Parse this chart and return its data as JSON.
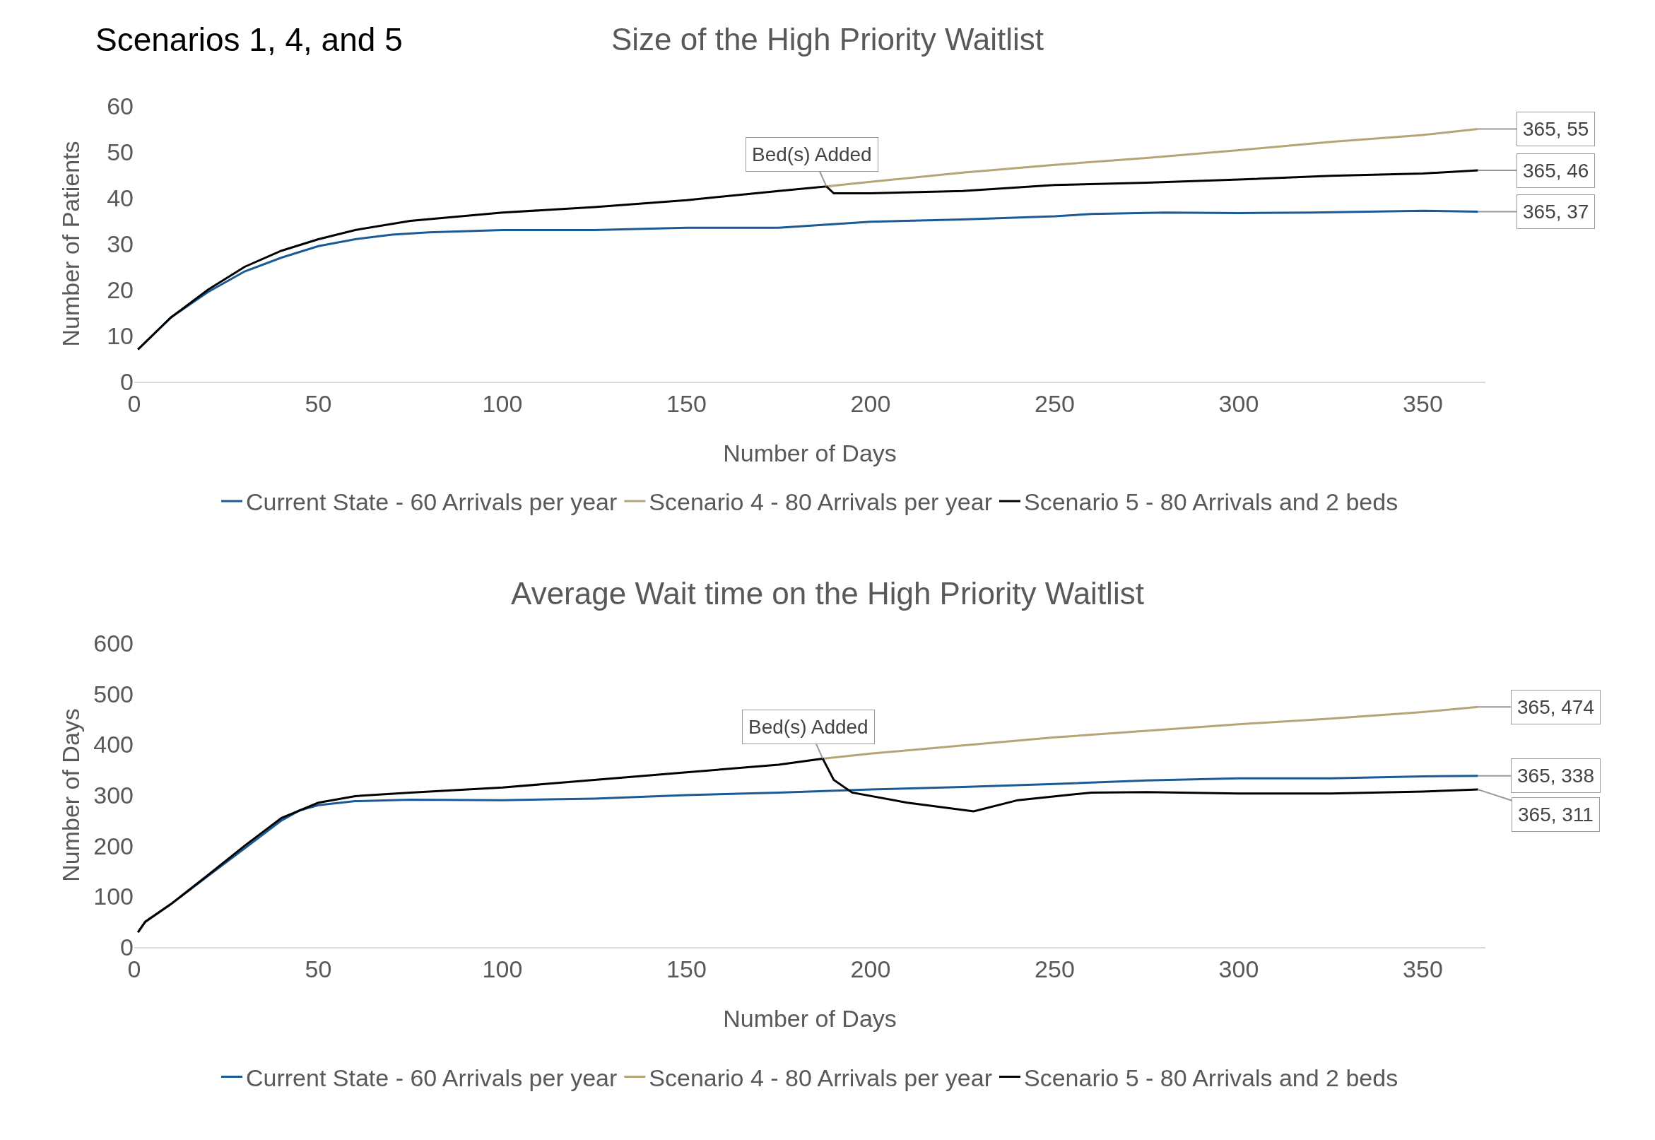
{
  "chart_data": [
    {
      "type": "line",
      "title": "Size of the High Priority Waitlist",
      "xlabel": "Number of Days",
      "ylabel": "Number of Patients",
      "xlim": [
        0,
        367
      ],
      "xticks": [
        0,
        50,
        100,
        150,
        200,
        250,
        300,
        350
      ],
      "ylim": [
        0,
        60
      ],
      "yticks": [
        0,
        10,
        20,
        30,
        40,
        50,
        60
      ],
      "grid": false,
      "legend": "bottom",
      "marker": "none",
      "annotations": [
        "Scenarios 1, 4, and 5",
        {
          "text": "Bed(s) Added",
          "x": 188,
          "y": 42.5
        },
        {
          "text": "365, 55",
          "x": 365,
          "y": 55
        },
        {
          "text": "365, 46",
          "x": 365,
          "y": 46
        },
        {
          "text": "365, 37",
          "x": 365,
          "y": 37
        }
      ],
      "series": [
        {
          "name": "Current State - 60 Arrivals per year",
          "color": "#1a5a96",
          "x": [
            1,
            10,
            20,
            30,
            40,
            50,
            60,
            70,
            80,
            100,
            125,
            150,
            175,
            200,
            225,
            250,
            260,
            280,
            300,
            320,
            350,
            365
          ],
          "values": [
            7,
            14,
            19.5,
            24,
            27,
            29.5,
            31,
            32,
            32.5,
            33,
            33,
            33.5,
            33.5,
            34.8,
            35.3,
            36,
            36.5,
            36.8,
            36.7,
            36.8,
            37.2,
            37
          ]
        },
        {
          "name": "Scenario 4 - 80 Arrivals per year",
          "color": "#b5a576",
          "x": [
            188,
            200,
            225,
            250,
            275,
            300,
            325,
            350,
            365
          ],
          "values": [
            42.5,
            43.5,
            45.5,
            47.2,
            48.7,
            50.4,
            52.2,
            53.7,
            55
          ]
        },
        {
          "name": "Scenario 5 - 80 Arrivals and 2 beds",
          "color": "#000000",
          "x": [
            1,
            10,
            20,
            30,
            40,
            50,
            60,
            75,
            100,
            125,
            150,
            175,
            188,
            190,
            200,
            225,
            250,
            275,
            300,
            325,
            350,
            365
          ],
          "values": [
            7,
            14,
            20,
            25,
            28.5,
            31,
            33,
            35,
            36.8,
            38,
            39.5,
            41.5,
            42.5,
            41,
            41,
            41.5,
            42.8,
            43.3,
            44,
            44.8,
            45.3,
            46
          ]
        }
      ]
    },
    {
      "type": "line",
      "title": "Average Wait time on the High Priority Waitlist",
      "xlabel": "Number of Days",
      "ylabel": "Number of Days",
      "xlim": [
        0,
        367
      ],
      "xticks": [
        0,
        50,
        100,
        150,
        200,
        250,
        300,
        350
      ],
      "ylim": [
        0,
        600
      ],
      "yticks": [
        0,
        100,
        200,
        300,
        400,
        500,
        600
      ],
      "grid": false,
      "legend": "bottom",
      "marker": "none",
      "annotations": [
        {
          "text": "Bed(s) Added",
          "x": 187,
          "y": 372
        },
        {
          "text": "365, 474",
          "x": 365,
          "y": 474
        },
        {
          "text": "365, 338",
          "x": 365,
          "y": 338
        },
        {
          "text": "365, 311",
          "x": 365,
          "y": 311
        }
      ],
      "series": [
        {
          "name": "Current State - 60 Arrivals per year",
          "color": "#1a5a96",
          "x": [
            1,
            3,
            10,
            20,
            30,
            40,
            45,
            50,
            60,
            75,
            100,
            125,
            150,
            175,
            200,
            225,
            250,
            275,
            300,
            325,
            350,
            365
          ],
          "values": [
            29,
            50,
            85,
            140,
            195,
            250,
            270,
            280,
            288,
            291,
            290,
            293,
            300,
            305,
            311,
            316,
            322,
            329,
            333,
            333,
            337,
            338
          ]
        },
        {
          "name": "Scenario 4 - 80 Arrivals per year",
          "color": "#b5a576",
          "x": [
            187,
            200,
            225,
            250,
            275,
            300,
            325,
            350,
            365
          ],
          "values": [
            372,
            382,
            398,
            414,
            427,
            440,
            451,
            464,
            474
          ]
        },
        {
          "name": "Scenario 5 - 80 Arrivals and 2 beds",
          "color": "#000000",
          "x": [
            1,
            3,
            10,
            20,
            30,
            40,
            50,
            60,
            75,
            100,
            125,
            150,
            175,
            187,
            190,
            195,
            210,
            228,
            240,
            260,
            275,
            300,
            325,
            350,
            365
          ],
          "values": [
            29,
            50,
            85,
            142,
            200,
            255,
            285,
            298,
            305,
            315,
            330,
            345,
            360,
            372,
            330,
            305,
            285,
            268,
            290,
            305,
            306,
            303,
            303,
            307,
            311
          ]
        }
      ]
    }
  ]
}
